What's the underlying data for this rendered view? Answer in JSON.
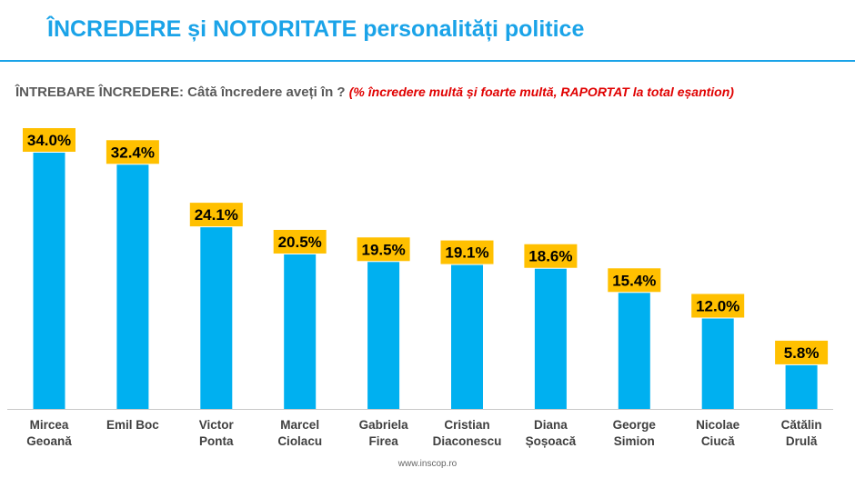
{
  "header": {
    "title": "ÎNCREDERE și NOTORITATE personalități politice",
    "question": "ÎNTREBARE ÎNCREDERE: Câtă încredere aveți în ?",
    "question_note": "(%  încredere multă și foarte multă, RAPORTAT la total eșantion)"
  },
  "footer": {
    "source": "www.inscop.ro"
  },
  "colors": {
    "bar": "#00b0f0",
    "label_bg": "#ffc000",
    "title": "#1aa3e8",
    "note": "#e00000"
  },
  "chart_data": {
    "type": "bar",
    "categories": [
      [
        "Mircea",
        "Geoană"
      ],
      [
        "Emil Boc"
      ],
      [
        "Victor",
        "Ponta"
      ],
      [
        "Marcel",
        "Ciolacu"
      ],
      [
        "Gabriela",
        "Firea"
      ],
      [
        "Cristian",
        "Diaconescu"
      ],
      [
        "Diana",
        "Șoșoacă"
      ],
      [
        "George",
        "Simion"
      ],
      [
        "Nicolae",
        "Ciucă"
      ],
      [
        "Cătălin",
        "Drulă"
      ]
    ],
    "values": [
      34.0,
      32.4,
      24.1,
      20.5,
      19.5,
      19.1,
      18.6,
      15.4,
      12.0,
      5.8
    ],
    "value_labels": [
      "34.0%",
      "32.4%",
      "24.1%",
      "20.5%",
      "19.5%",
      "19.1%",
      "18.6%",
      "15.4%",
      "12.0%",
      "5.8%"
    ],
    "ylim": [
      0,
      34.0
    ],
    "grid": false,
    "legend": "none"
  }
}
